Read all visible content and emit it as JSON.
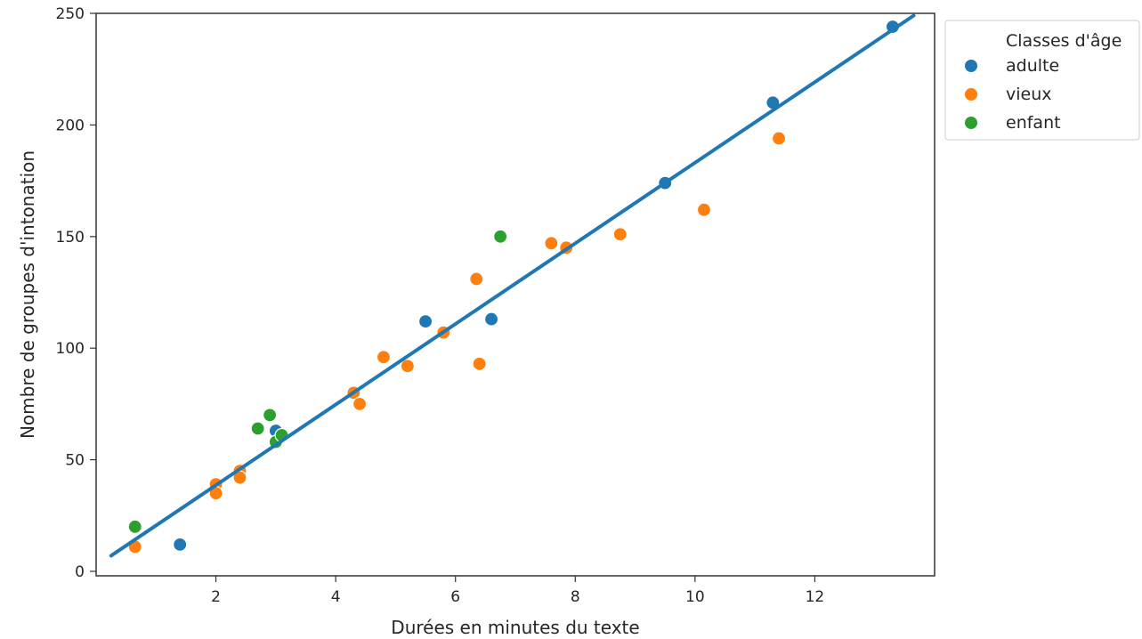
{
  "chart_data": {
    "type": "scatter",
    "title": "",
    "xlabel": "Durées en minutes du texte",
    "ylabel": "Nombre de groupes d'intonation",
    "xlim": [
      0.0,
      14.0
    ],
    "ylim": [
      -2,
      250
    ],
    "xticks": [
      2,
      4,
      6,
      8,
      10,
      12
    ],
    "yticks": [
      0,
      50,
      100,
      150,
      200,
      250
    ],
    "grid": false,
    "legend": {
      "title": "Classes d'âge",
      "placement": "outside-right-top"
    },
    "series": [
      {
        "name": "adulte",
        "color": "#1f77b4",
        "points": [
          [
            1.4,
            12
          ],
          [
            3.0,
            63
          ],
          [
            5.5,
            112
          ],
          [
            6.6,
            113
          ],
          [
            9.5,
            174
          ],
          [
            11.3,
            210
          ],
          [
            13.3,
            244
          ]
        ]
      },
      {
        "name": "vieux",
        "color": "#ff7f0e",
        "points": [
          [
            0.65,
            11
          ],
          [
            2.0,
            39
          ],
          [
            2.0,
            35
          ],
          [
            2.4,
            45
          ],
          [
            2.4,
            42
          ],
          [
            4.3,
            80
          ],
          [
            4.4,
            75
          ],
          [
            4.8,
            96
          ],
          [
            5.2,
            92
          ],
          [
            5.8,
            107
          ],
          [
            6.35,
            131
          ],
          [
            6.4,
            93
          ],
          [
            7.6,
            147
          ],
          [
            7.85,
            145
          ],
          [
            8.75,
            151
          ],
          [
            10.15,
            162
          ],
          [
            11.4,
            194
          ]
        ]
      },
      {
        "name": "enfant",
        "color": "#2ca02c",
        "points": [
          [
            0.65,
            20
          ],
          [
            2.7,
            64
          ],
          [
            2.9,
            70
          ],
          [
            3.0,
            58
          ],
          [
            3.1,
            61
          ],
          [
            6.75,
            150
          ]
        ]
      }
    ],
    "regression_line": {
      "color": "#1f77b4",
      "x": [
        0.25,
        13.65
      ],
      "y": [
        7,
        249
      ]
    }
  }
}
